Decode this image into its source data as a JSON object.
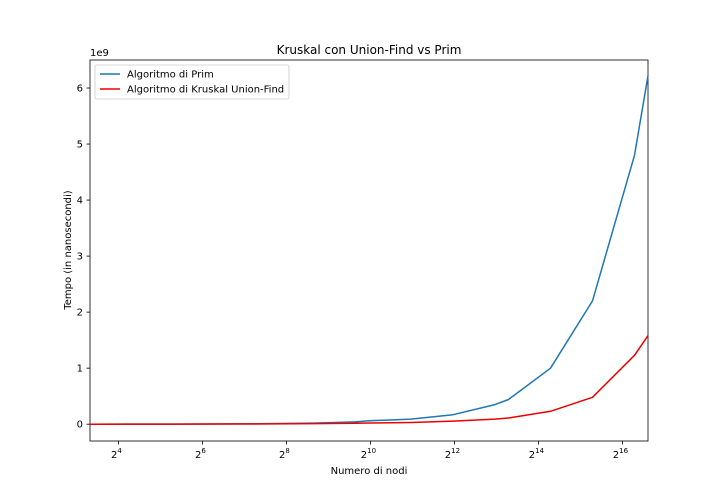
{
  "chart_data": {
    "type": "line",
    "title": "Kruskal con Union-Find vs Prim",
    "xlabel": "Numero di nodi",
    "ylabel": "Tempo (in nanosecondi)",
    "y_offset_label": "1e9",
    "x_scale": "log2",
    "xlim": [
      10,
      100000
    ],
    "ylim": [
      -300000000,
      6500000000
    ],
    "x_ticks": [
      {
        "value": 16,
        "base": "2",
        "exp": "4"
      },
      {
        "value": 64,
        "base": "2",
        "exp": "6"
      },
      {
        "value": 256,
        "base": "2",
        "exp": "8"
      },
      {
        "value": 1024,
        "base": "2",
        "exp": "10"
      },
      {
        "value": 4096,
        "base": "2",
        "exp": "12"
      },
      {
        "value": 16384,
        "base": "2",
        "exp": "14"
      },
      {
        "value": 65536,
        "base": "2",
        "exp": "16"
      }
    ],
    "y_ticks": [
      {
        "value": 0,
        "label": "0"
      },
      {
        "value": 1000000000,
        "label": "1"
      },
      {
        "value": 2000000000,
        "label": "2"
      },
      {
        "value": 3000000000,
        "label": "3"
      },
      {
        "value": 4000000000,
        "label": "4"
      },
      {
        "value": 5000000000,
        "label": "5"
      },
      {
        "value": 6000000000,
        "label": "6"
      }
    ],
    "legend_position": "top-left",
    "grid": false,
    "series": [
      {
        "name": "Algoritmo di Prim",
        "color": "#1f77b4",
        "x": [
          10,
          20,
          40,
          100,
          200,
          400,
          800,
          1000,
          2000,
          4000,
          8000,
          10000,
          20000,
          40000,
          80000,
          100000
        ],
        "y": [
          0,
          1000000,
          2000000,
          5000000,
          10000000,
          20000000,
          40000000,
          60000000,
          90000000,
          170000000,
          350000000,
          440000000,
          1000000000,
          2200000000,
          4800000000,
          6220000000
        ]
      },
      {
        "name": "Algoritmo di Kruskal Union-Find",
        "color": "#ee0000",
        "x": [
          10,
          20,
          40,
          100,
          200,
          400,
          800,
          1000,
          2000,
          4000,
          8000,
          10000,
          20000,
          40000,
          80000,
          100000
        ],
        "y": [
          0,
          1000000,
          1500000,
          3000000,
          6000000,
          10000000,
          18000000,
          22000000,
          30000000,
          55000000,
          90000000,
          110000000,
          230000000,
          480000000,
          1230000000,
          1580000000
        ]
      }
    ]
  }
}
